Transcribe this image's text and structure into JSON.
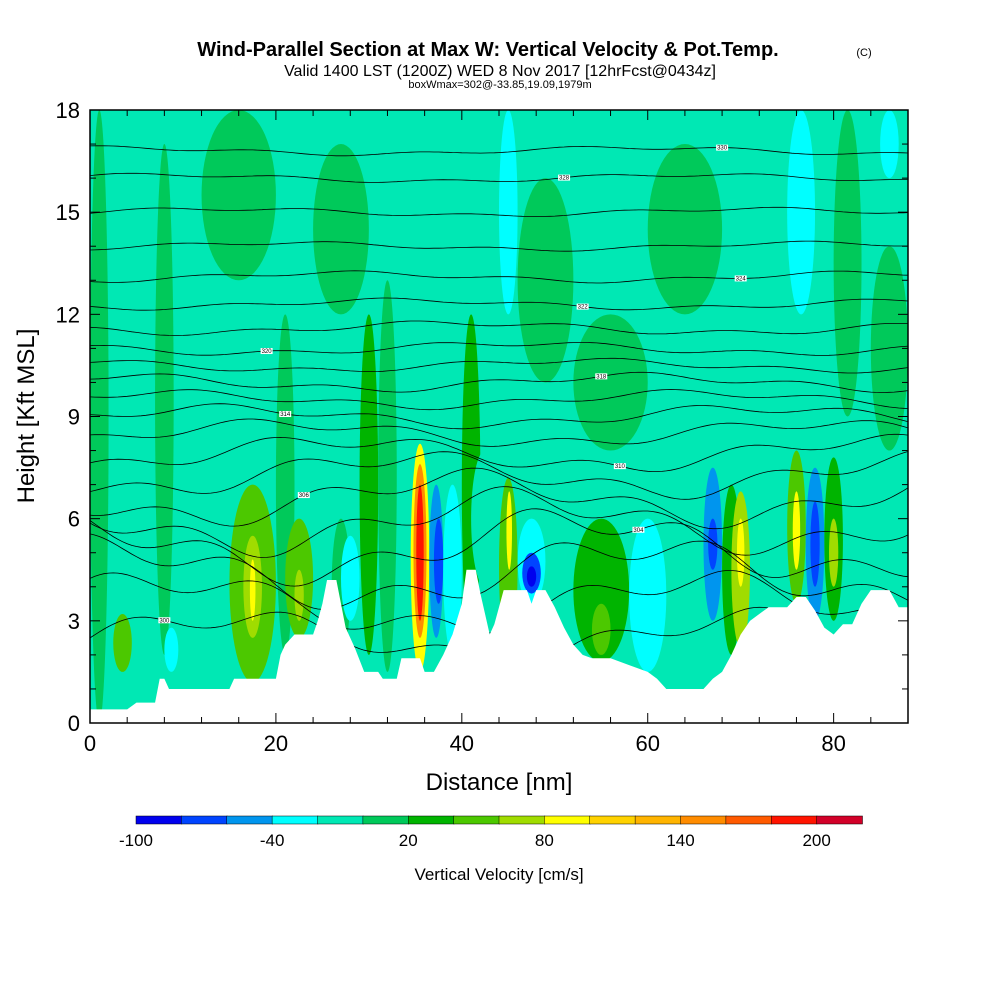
{
  "chart_data": {
    "type": "heatmap",
    "title": "Wind-Parallel Section at Max W: Vertical Velocity & Pot.Temp.",
    "title_mark": "(C)",
    "subtitle": "Valid 1400 LST (1200Z) WED 8 Nov 2017 [12hrFcst@0434z]",
    "subtitle_detail": "boxWmax=302@-33.85,19.09,1979m",
    "xlabel": "Distance [nm]",
    "ylabel": "Height [Kft MSL]",
    "xlim": [
      0,
      88
    ],
    "ylim": [
      0,
      18
    ],
    "xticks": [
      0,
      20,
      40,
      60,
      80
    ],
    "yticks": [
      0,
      3,
      6,
      9,
      12,
      15,
      18
    ],
    "colorbar": {
      "label": "Vertical Velocity [cm/s]",
      "tick_labels": [
        "-100",
        "-40",
        "20",
        "80",
        "140",
        "200"
      ],
      "colors": [
        "#0000ee",
        "#0044ff",
        "#0095ee",
        "#00ffff",
        "#00e8b4",
        "#00c95a",
        "#00b400",
        "#4cc800",
        "#a0dc00",
        "#ffff00",
        "#ffd200",
        "#ffb400",
        "#ff8c00",
        "#ff5a00",
        "#ff1400",
        "#d20028"
      ]
    },
    "max_w": 302,
    "cells": [
      {
        "x0": 0,
        "x1": 2,
        "y0": 0,
        "y1": 18,
        "level": 5
      },
      {
        "x0": 2,
        "x1": 6,
        "y0": 1.5,
        "y1": 18,
        "level": 4
      },
      {
        "x0": 2.5,
        "x1": 4.5,
        "y0": 1.5,
        "y1": 3.2,
        "level": 7
      },
      {
        "x0": 7,
        "x1": 9,
        "y0": 2,
        "y1": 17,
        "level": 5
      },
      {
        "x0": 8,
        "x1": 9.5,
        "y0": 1.5,
        "y1": 2.8,
        "level": 3
      },
      {
        "x0": 10,
        "x1": 14,
        "y0": 1.2,
        "y1": 6,
        "level": 4
      },
      {
        "x0": 15,
        "x1": 20,
        "y0": 1.2,
        "y1": 7,
        "level": 7
      },
      {
        "x0": 16.5,
        "x1": 18.5,
        "y0": 2.5,
        "y1": 5.5,
        "level": 8
      },
      {
        "x0": 17.2,
        "x1": 17.8,
        "y0": 3,
        "y1": 4.8,
        "level": 9
      },
      {
        "x0": 20,
        "x1": 22,
        "y0": 2,
        "y1": 12,
        "level": 5
      },
      {
        "x0": 21,
        "x1": 24,
        "y0": 2.5,
        "y1": 6,
        "level": 7
      },
      {
        "x0": 22,
        "x1": 23,
        "y0": 3,
        "y1": 4.5,
        "level": 8
      },
      {
        "x0": 24,
        "x1": 26,
        "y0": 4,
        "y1": 12,
        "level": 4
      },
      {
        "x0": 26,
        "x1": 28,
        "y0": 2,
        "y1": 6,
        "level": 5
      },
      {
        "x0": 27,
        "x1": 29,
        "y0": 3,
        "y1": 5.5,
        "level": 3
      },
      {
        "x0": 29,
        "x1": 31,
        "y0": 2,
        "y1": 12,
        "level": 6
      },
      {
        "x0": 31,
        "x1": 33,
        "y0": 1.5,
        "y1": 13,
        "level": 5
      },
      {
        "x0": 33,
        "x1": 34.5,
        "y0": 2,
        "y1": 9,
        "level": 4
      },
      {
        "x0": 34.5,
        "x1": 36.5,
        "y0": 1.5,
        "y1": 8.2,
        "level": 9
      },
      {
        "x0": 34.8,
        "x1": 36.2,
        "y0": 2.5,
        "y1": 7.6,
        "level": 12
      },
      {
        "x0": 35.1,
        "x1": 35.9,
        "y0": 3,
        "y1": 7,
        "level": 14
      },
      {
        "x0": 36.5,
        "x1": 38,
        "y0": 2.5,
        "y1": 7,
        "level": 2
      },
      {
        "x0": 37,
        "x1": 38,
        "y0": 3.5,
        "y1": 6,
        "level": 1
      },
      {
        "x0": 38,
        "x1": 40,
        "y0": 2,
        "y1": 7,
        "level": 3
      },
      {
        "x0": 40,
        "x1": 42,
        "y0": 2,
        "y1": 12,
        "level": 6
      },
      {
        "x0": 41,
        "x1": 44,
        "y0": 4,
        "y1": 8,
        "level": 4
      },
      {
        "x0": 44,
        "x1": 46,
        "y0": 2,
        "y1": 7.2,
        "level": 7
      },
      {
        "x0": 44.8,
        "x1": 45.4,
        "y0": 4.5,
        "y1": 6.8,
        "level": 9
      },
      {
        "x0": 46,
        "x1": 49,
        "y0": 3.5,
        "y1": 6,
        "level": 3
      },
      {
        "x0": 46.5,
        "x1": 48.5,
        "y0": 3.8,
        "y1": 5,
        "level": 1
      },
      {
        "x0": 47,
        "x1": 48,
        "y0": 4,
        "y1": 4.6,
        "level": 0
      },
      {
        "x0": 49,
        "x1": 52,
        "y0": 2,
        "y1": 9,
        "level": 4
      },
      {
        "x0": 52,
        "x1": 58,
        "y0": 1.8,
        "y1": 6,
        "level": 6
      },
      {
        "x0": 54,
        "x1": 56,
        "y0": 2,
        "y1": 3.5,
        "level": 7
      },
      {
        "x0": 58,
        "x1": 62,
        "y0": 1.5,
        "y1": 6,
        "level": 3
      },
      {
        "x0": 62,
        "x1": 66,
        "y0": 1.2,
        "y1": 7,
        "level": 4
      },
      {
        "x0": 66,
        "x1": 68,
        "y0": 3,
        "y1": 7.5,
        "level": 2
      },
      {
        "x0": 66.5,
        "x1": 67.5,
        "y0": 4.5,
        "y1": 6,
        "level": 1
      },
      {
        "x0": 68,
        "x1": 70,
        "y0": 2,
        "y1": 7,
        "level": 6
      },
      {
        "x0": 69,
        "x1": 71,
        "y0": 2.2,
        "y1": 6.8,
        "level": 8
      },
      {
        "x0": 69.6,
        "x1": 70.4,
        "y0": 4,
        "y1": 6,
        "level": 9
      },
      {
        "x0": 71,
        "x1": 75,
        "y0": 3.5,
        "y1": 8,
        "level": 4
      },
      {
        "x0": 75,
        "x1": 77,
        "y0": 3.5,
        "y1": 8,
        "level": 7
      },
      {
        "x0": 75.6,
        "x1": 76.4,
        "y0": 4.5,
        "y1": 6.8,
        "level": 9
      },
      {
        "x0": 77,
        "x1": 79,
        "y0": 3,
        "y1": 7.5,
        "level": 2
      },
      {
        "x0": 77.5,
        "x1": 78.5,
        "y0": 4,
        "y1": 6.5,
        "level": 1
      },
      {
        "x0": 79,
        "x1": 81,
        "y0": 3,
        "y1": 7.8,
        "level": 6
      },
      {
        "x0": 79.5,
        "x1": 80.5,
        "y0": 4,
        "y1": 6,
        "level": 8
      },
      {
        "x0": 81,
        "x1": 88,
        "y0": 3,
        "y1": 8,
        "level": 4
      },
      {
        "x0": 84,
        "x1": 88,
        "y0": 8,
        "y1": 14,
        "level": 5
      },
      {
        "x0": 75,
        "x1": 78,
        "y0": 12,
        "y1": 18,
        "level": 3
      },
      {
        "x0": 80,
        "x1": 83,
        "y0": 9,
        "y1": 18,
        "level": 5
      },
      {
        "x0": 85,
        "x1": 87,
        "y0": 16,
        "y1": 18,
        "level": 3
      },
      {
        "x0": 44,
        "x1": 46,
        "y0": 12,
        "y1": 18,
        "level": 3
      },
      {
        "x0": 46,
        "x1": 52,
        "y0": 10,
        "y1": 16,
        "level": 5
      },
      {
        "x0": 52,
        "x1": 60,
        "y0": 8,
        "y1": 12,
        "level": 5
      },
      {
        "x0": 60,
        "x1": 68,
        "y0": 12,
        "y1": 17,
        "level": 5
      },
      {
        "x0": 24,
        "x1": 30,
        "y0": 12,
        "y1": 17,
        "level": 5
      },
      {
        "x0": 12,
        "x1": 20,
        "y0": 13,
        "y1": 18,
        "level": 5
      }
    ],
    "terrain_kft": [
      [
        0,
        0.4
      ],
      [
        2,
        0.4
      ],
      [
        4,
        0.4
      ],
      [
        5,
        0.6
      ],
      [
        7,
        0.6
      ],
      [
        7.5,
        1.3
      ],
      [
        8,
        1.3
      ],
      [
        8.5,
        1.0
      ],
      [
        9,
        1.0
      ],
      [
        15,
        1.0
      ],
      [
        15.5,
        1.3
      ],
      [
        20,
        1.3
      ],
      [
        20.5,
        2.0
      ],
      [
        21,
        2.3
      ],
      [
        22,
        2.6
      ],
      [
        24,
        2.6
      ],
      [
        24.5,
        3.0
      ],
      [
        25,
        3.5
      ],
      [
        25.5,
        4.2
      ],
      [
        26.5,
        4.2
      ],
      [
        27,
        3.5
      ],
      [
        27.5,
        2.8
      ],
      [
        28.5,
        2.2
      ],
      [
        29.5,
        1.5
      ],
      [
        31,
        1.5
      ],
      [
        31.5,
        1.3
      ],
      [
        33,
        1.3
      ],
      [
        33.5,
        1.9
      ],
      [
        35.5,
        1.9
      ],
      [
        36,
        1.5
      ],
      [
        37,
        1.5
      ],
      [
        38,
        2.0
      ],
      [
        39,
        2.6
      ],
      [
        40,
        3.5
      ],
      [
        40.5,
        4.5
      ],
      [
        41.5,
        4.5
      ],
      [
        42,
        3.8
      ],
      [
        42.5,
        3.2
      ],
      [
        43,
        2.6
      ],
      [
        43.5,
        2.9
      ],
      [
        44,
        3.4
      ],
      [
        44.5,
        3.9
      ],
      [
        47,
        3.9
      ],
      [
        47.5,
        3.5
      ],
      [
        48,
        3.9
      ],
      [
        49,
        3.9
      ],
      [
        50,
        3.4
      ],
      [
        51,
        2.8
      ],
      [
        52,
        2.3
      ],
      [
        53,
        2.0
      ],
      [
        54,
        1.9
      ],
      [
        56,
        1.9
      ],
      [
        58,
        1.7
      ],
      [
        60,
        1.5
      ],
      [
        61,
        1.3
      ],
      [
        62,
        1.0
      ],
      [
        66,
        1.0
      ],
      [
        67,
        1.3
      ],
      [
        68,
        1.5
      ],
      [
        69,
        2.0
      ],
      [
        70,
        2.6
      ],
      [
        71,
        3.0
      ],
      [
        72,
        3.2
      ],
      [
        73,
        3.4
      ],
      [
        75,
        3.4
      ],
      [
        76,
        3.7
      ],
      [
        77,
        3.7
      ],
      [
        78,
        3.3
      ],
      [
        79,
        2.8
      ],
      [
        80,
        2.6
      ],
      [
        81,
        2.9
      ],
      [
        82,
        2.9
      ],
      [
        83,
        3.5
      ],
      [
        84,
        3.9
      ],
      [
        86,
        3.9
      ],
      [
        87,
        3.4
      ],
      [
        88,
        3.4
      ]
    ],
    "theta_contours": [
      {
        "base": 2.5,
        "amp": 0.6,
        "label": "300"
      },
      {
        "base": 3.5,
        "amp": 0.7,
        "label": ""
      },
      {
        "base": 4.4,
        "amp": 0.8,
        "label": ""
      },
      {
        "base": 5.2,
        "amp": 0.8,
        "label": "304"
      },
      {
        "base": 5.9,
        "amp": 0.7,
        "label": ""
      },
      {
        "base": 6.6,
        "amp": 0.6,
        "label": "306"
      },
      {
        "base": 7.3,
        "amp": 0.5,
        "label": ""
      },
      {
        "base": 7.9,
        "amp": 0.4,
        "label": "310"
      },
      {
        "base": 8.5,
        "amp": 0.3,
        "label": ""
      },
      {
        "base": 9.0,
        "amp": 0.25,
        "label": "314"
      },
      {
        "base": 9.5,
        "amp": 0.2,
        "label": ""
      },
      {
        "base": 10.0,
        "amp": 0.2,
        "label": "318"
      },
      {
        "base": 10.5,
        "amp": 0.15,
        "label": ""
      },
      {
        "base": 11.0,
        "amp": 0.15,
        "label": "320"
      },
      {
        "base": 11.6,
        "amp": 0.15,
        "label": ""
      },
      {
        "base": 12.3,
        "amp": 0.12,
        "label": "322"
      },
      {
        "base": 13.1,
        "amp": 0.12,
        "label": "324"
      },
      {
        "base": 14.0,
        "amp": 0.1,
        "label": ""
      },
      {
        "base": 15.0,
        "amp": 0.1,
        "label": ""
      },
      {
        "base": 16.0,
        "amp": 0.1,
        "label": "328"
      },
      {
        "base": 16.8,
        "amp": 0.1,
        "label": "330"
      }
    ]
  }
}
